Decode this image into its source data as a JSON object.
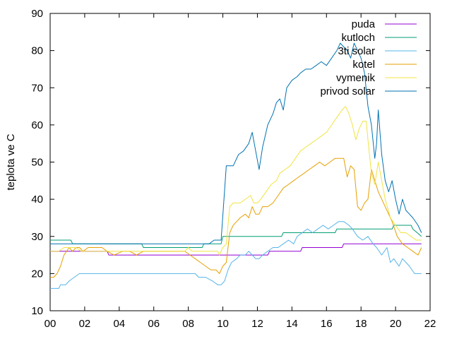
{
  "chart_data": {
    "type": "line",
    "title": "",
    "xlabel": "",
    "ylabel": "teplota ve C",
    "xlim": [
      0,
      22
    ],
    "ylim": [
      10,
      90
    ],
    "x_ticks": [
      {
        "value": 0,
        "label": "00"
      },
      {
        "value": 2,
        "label": "02"
      },
      {
        "value": 4,
        "label": "04"
      },
      {
        "value": 6,
        "label": "06"
      },
      {
        "value": 8,
        "label": "08"
      },
      {
        "value": 10,
        "label": "10"
      },
      {
        "value": 12,
        "label": "12"
      },
      {
        "value": 14,
        "label": "14"
      },
      {
        "value": 16,
        "label": "16"
      },
      {
        "value": 18,
        "label": "18"
      },
      {
        "value": 20,
        "label": "20"
      },
      {
        "value": 22,
        "label": "22"
      }
    ],
    "y_ticks": [
      10,
      20,
      30,
      40,
      50,
      60,
      70,
      80,
      90
    ],
    "grid": false,
    "legend_position": "top-right",
    "series": [
      {
        "name": "puda",
        "color": "#9400d3",
        "points": [
          [
            0,
            26
          ],
          [
            3.3,
            26
          ],
          [
            3.4,
            25
          ],
          [
            9.9,
            25
          ],
          [
            12.6,
            25
          ],
          [
            12.7,
            26
          ],
          [
            14.5,
            26
          ],
          [
            14.6,
            27
          ],
          [
            16.9,
            27
          ],
          [
            17,
            28
          ],
          [
            21.5,
            28
          ]
        ]
      },
      {
        "name": "kutloch",
        "color": "#009e73",
        "points": [
          [
            0,
            29
          ],
          [
            1.2,
            29
          ],
          [
            1.3,
            28
          ],
          [
            5.3,
            28
          ],
          [
            5.4,
            27
          ],
          [
            8.8,
            27
          ],
          [
            8.9,
            28
          ],
          [
            9.9,
            28
          ],
          [
            10,
            30
          ],
          [
            13.4,
            30
          ],
          [
            13.5,
            31
          ],
          [
            16.5,
            31
          ],
          [
            16.6,
            32
          ],
          [
            19.8,
            32
          ],
          [
            19.9,
            33
          ],
          [
            20.9,
            33
          ],
          [
            21,
            32
          ],
          [
            21.5,
            30
          ]
        ]
      },
      {
        "name": "3ti solar",
        "color": "#56b4e9",
        "points": [
          [
            0,
            16
          ],
          [
            0.5,
            16
          ],
          [
            0.6,
            17
          ],
          [
            0.9,
            17
          ],
          [
            1.1,
            18
          ],
          [
            1.4,
            19
          ],
          [
            1.7,
            20
          ],
          [
            8.4,
            20
          ],
          [
            8.6,
            19
          ],
          [
            9,
            19
          ],
          [
            9.4,
            18
          ],
          [
            9.7,
            17
          ],
          [
            9.9,
            17
          ],
          [
            10.1,
            18
          ],
          [
            10.3,
            21
          ],
          [
            10.5,
            23
          ],
          [
            10.8,
            24
          ],
          [
            11,
            25
          ],
          [
            11.3,
            25
          ],
          [
            11.5,
            26
          ],
          [
            11.7,
            25
          ],
          [
            11.9,
            24
          ],
          [
            12.1,
            24
          ],
          [
            12.3,
            25
          ],
          [
            12.6,
            26
          ],
          [
            12.9,
            27
          ],
          [
            13.2,
            27
          ],
          [
            13.5,
            28
          ],
          [
            13.8,
            29
          ],
          [
            14.1,
            28
          ],
          [
            14.3,
            30
          ],
          [
            14.6,
            31
          ],
          [
            14.9,
            32
          ],
          [
            15.2,
            31
          ],
          [
            15.5,
            32
          ],
          [
            15.8,
            33
          ],
          [
            16.1,
            32
          ],
          [
            16.4,
            33
          ],
          [
            16.7,
            34
          ],
          [
            17,
            34
          ],
          [
            17.3,
            33
          ],
          [
            17.5,
            32
          ],
          [
            17.8,
            30
          ],
          [
            18.1,
            29
          ],
          [
            18.4,
            30
          ],
          [
            18.7,
            28
          ],
          [
            18.9,
            27
          ],
          [
            19.2,
            25
          ],
          [
            19.5,
            27
          ],
          [
            19.7,
            23
          ],
          [
            19.9,
            24
          ],
          [
            20.2,
            22
          ],
          [
            20.4,
            24
          ],
          [
            20.6,
            23
          ],
          [
            20.8,
            22
          ],
          [
            21.1,
            20
          ],
          [
            21.5,
            20
          ]
        ]
      },
      {
        "name": "kotel",
        "color": "#e69f00",
        "points": [
          [
            0,
            19
          ],
          [
            0.2,
            19
          ],
          [
            0.4,
            20
          ],
          [
            0.6,
            22
          ],
          [
            0.8,
            25
          ],
          [
            1.1,
            27
          ],
          [
            1.3,
            26
          ],
          [
            1.5,
            27
          ],
          [
            1.7,
            27
          ],
          [
            1.9,
            26
          ],
          [
            2.2,
            27
          ],
          [
            2.6,
            27
          ],
          [
            3,
            27
          ],
          [
            3.3,
            26
          ],
          [
            3.7,
            25
          ],
          [
            4.2,
            26
          ],
          [
            4.6,
            26
          ],
          [
            5,
            25
          ],
          [
            5.4,
            26
          ],
          [
            7.8,
            26
          ],
          [
            8.1,
            25
          ],
          [
            8.4,
            24
          ],
          [
            8.7,
            23
          ],
          [
            9,
            22
          ],
          [
            9.3,
            21
          ],
          [
            9.6,
            21
          ],
          [
            9.8,
            20
          ],
          [
            10,
            22
          ],
          [
            10.2,
            23
          ],
          [
            10.4,
            31
          ],
          [
            10.6,
            33
          ],
          [
            10.8,
            34
          ],
          [
            11,
            35
          ],
          [
            11.3,
            36
          ],
          [
            11.5,
            35
          ],
          [
            11.7,
            38
          ],
          [
            11.9,
            36
          ],
          [
            12.1,
            36
          ],
          [
            12.3,
            38
          ],
          [
            12.6,
            38
          ],
          [
            12.9,
            39
          ],
          [
            13.2,
            41
          ],
          [
            13.5,
            43
          ],
          [
            13.8,
            44
          ],
          [
            14.1,
            45
          ],
          [
            14.4,
            46
          ],
          [
            14.7,
            47
          ],
          [
            15,
            48
          ],
          [
            15.3,
            49
          ],
          [
            15.6,
            50
          ],
          [
            15.9,
            49
          ],
          [
            16.2,
            50
          ],
          [
            16.5,
            51
          ],
          [
            16.8,
            51
          ],
          [
            17,
            51
          ],
          [
            17.2,
            46
          ],
          [
            17.4,
            49
          ],
          [
            17.6,
            48
          ],
          [
            17.8,
            38
          ],
          [
            18,
            37
          ],
          [
            18.2,
            39
          ],
          [
            18.4,
            40
          ],
          [
            18.6,
            48
          ],
          [
            18.8,
            45
          ],
          [
            19,
            42
          ],
          [
            19.2,
            40
          ],
          [
            19.5,
            37
          ],
          [
            19.8,
            34
          ],
          [
            20.1,
            30
          ],
          [
            20.4,
            28
          ],
          [
            20.7,
            27
          ],
          [
            21,
            26
          ],
          [
            21.3,
            25
          ],
          [
            21.5,
            27
          ]
        ]
      },
      {
        "name": "vymenik",
        "color": "#f0e442",
        "points": [
          [
            0,
            26
          ],
          [
            0.5,
            26
          ],
          [
            0.8,
            27
          ],
          [
            1.1,
            27
          ],
          [
            1.5,
            27
          ],
          [
            1.8,
            26
          ],
          [
            5.4,
            26
          ],
          [
            7.8,
            26
          ],
          [
            8,
            27
          ],
          [
            8.2,
            26
          ],
          [
            9.7,
            26
          ],
          [
            9.8,
            25
          ],
          [
            10,
            27
          ],
          [
            10.2,
            28
          ],
          [
            10.4,
            38
          ],
          [
            10.6,
            39
          ],
          [
            11,
            39
          ],
          [
            11.3,
            40
          ],
          [
            11.6,
            41
          ],
          [
            11.8,
            39
          ],
          [
            12,
            39
          ],
          [
            12.2,
            40
          ],
          [
            12.5,
            42
          ],
          [
            12.8,
            44
          ],
          [
            13.1,
            45
          ],
          [
            13.3,
            47
          ],
          [
            13.6,
            48
          ],
          [
            13.9,
            49
          ],
          [
            14.2,
            51
          ],
          [
            14.5,
            53
          ],
          [
            14.8,
            54
          ],
          [
            15.1,
            55
          ],
          [
            15.4,
            56
          ],
          [
            15.7,
            57
          ],
          [
            16,
            58
          ],
          [
            16.3,
            60
          ],
          [
            16.6,
            62
          ],
          [
            16.9,
            64
          ],
          [
            17.1,
            65
          ],
          [
            17.3,
            63
          ],
          [
            17.5,
            60
          ],
          [
            17.7,
            56
          ],
          [
            17.9,
            59
          ],
          [
            18.1,
            61
          ],
          [
            18.3,
            61
          ],
          [
            18.4,
            56
          ],
          [
            18.6,
            47
          ],
          [
            18.8,
            44
          ],
          [
            19,
            50
          ],
          [
            19.2,
            45
          ],
          [
            19.4,
            40
          ],
          [
            19.7,
            35
          ],
          [
            20,
            33
          ],
          [
            20.3,
            31
          ],
          [
            20.6,
            31
          ],
          [
            20.9,
            30
          ],
          [
            21.2,
            29
          ],
          [
            21.5,
            29
          ]
        ]
      },
      {
        "name": "privod solar",
        "color": "#0072b2",
        "points": [
          [
            0,
            28
          ],
          [
            9.2,
            28
          ],
          [
            9.5,
            29
          ],
          [
            9.9,
            29
          ],
          [
            10.2,
            49
          ],
          [
            10.6,
            49
          ],
          [
            10.9,
            52
          ],
          [
            11.2,
            53
          ],
          [
            11.5,
            55
          ],
          [
            11.7,
            58
          ],
          [
            11.9,
            53
          ],
          [
            12.1,
            48
          ],
          [
            12.3,
            54
          ],
          [
            12.6,
            60
          ],
          [
            12.9,
            63
          ],
          [
            13.1,
            66
          ],
          [
            13.3,
            67
          ],
          [
            13.5,
            64
          ],
          [
            13.7,
            70
          ],
          [
            14,
            72
          ],
          [
            14.3,
            73
          ],
          [
            14.5,
            74
          ],
          [
            14.8,
            75
          ],
          [
            15.1,
            75
          ],
          [
            15.4,
            76
          ],
          [
            15.7,
            77
          ],
          [
            16,
            76
          ],
          [
            16.3,
            78
          ],
          [
            16.6,
            80
          ],
          [
            16.8,
            82
          ],
          [
            17,
            81
          ],
          [
            17.2,
            80
          ],
          [
            17.4,
            78
          ],
          [
            17.6,
            82
          ],
          [
            17.8,
            80
          ],
          [
            18,
            78
          ],
          [
            18.2,
            74
          ],
          [
            18.4,
            65
          ],
          [
            18.6,
            60
          ],
          [
            18.8,
            51
          ],
          [
            18.9,
            55
          ],
          [
            19,
            64
          ],
          [
            19.2,
            52
          ],
          [
            19.4,
            45
          ],
          [
            19.6,
            42
          ],
          [
            19.8,
            45
          ],
          [
            20,
            40
          ],
          [
            20.2,
            36
          ],
          [
            20.4,
            40
          ],
          [
            20.6,
            37
          ],
          [
            20.8,
            36
          ],
          [
            21,
            35
          ],
          [
            21.3,
            33
          ],
          [
            21.5,
            31
          ]
        ]
      }
    ]
  }
}
